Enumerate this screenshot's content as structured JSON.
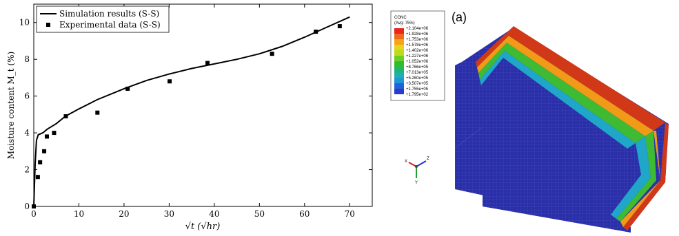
{
  "chart_data": {
    "type": "line+scatter",
    "xlabel": "√t (√hr)",
    "ylabel": "Moisture content M_t (%)",
    "xlim": [
      0,
      75
    ],
    "ylim": [
      0,
      11
    ],
    "xticks": [
      0,
      10,
      20,
      30,
      40,
      50,
      60,
      70
    ],
    "yticks": [
      0,
      2,
      4,
      6,
      8,
      10
    ],
    "legend_position": "top-left",
    "series": [
      {
        "name": "Simulation results (S-S)",
        "style": "line",
        "x": [
          0,
          0.3,
          0.6,
          1.0,
          2,
          3,
          5,
          7,
          10,
          14,
          20,
          25,
          30,
          35,
          40,
          45,
          50,
          55,
          60,
          65,
          70
        ],
        "y": [
          0,
          2.3,
          3.6,
          3.9,
          4.0,
          4.2,
          4.5,
          4.9,
          5.3,
          5.8,
          6.4,
          6.85,
          7.2,
          7.5,
          7.75,
          8.0,
          8.3,
          8.7,
          9.2,
          9.75,
          10.3
        ]
      },
      {
        "name": "Experimental data (S-S)",
        "style": "markers",
        "x": [
          0,
          0.9,
          1.4,
          2.3,
          2.9,
          4.5,
          7.1,
          14.1,
          20.8,
          30.1,
          38.5,
          52.8,
          62.5,
          67.8
        ],
        "y": [
          0,
          1.6,
          2.4,
          3.0,
          3.8,
          4.0,
          4.9,
          5.1,
          6.4,
          6.8,
          7.8,
          8.3,
          9.5,
          9.8
        ]
      }
    ]
  },
  "figure": {
    "panel_label": "(a)",
    "fea_legend": {
      "title": "CONC",
      "subtitle": "(Avg: 75%)",
      "entries": [
        {
          "label": "+2.104e+06",
          "color": "#e8261f"
        },
        {
          "label": "+1.928e+06",
          "color": "#f06a1c"
        },
        {
          "label": "+1.753e+06",
          "color": "#f5a31a"
        },
        {
          "label": "+1.578e+06",
          "color": "#e9d21b"
        },
        {
          "label": "+1.402e+06",
          "color": "#b8dc1e"
        },
        {
          "label": "+1.227e+06",
          "color": "#6fce25"
        },
        {
          "label": "+1.052e+06",
          "color": "#2fbd2f"
        },
        {
          "label": "+8.766e+05",
          "color": "#21b56a"
        },
        {
          "label": "+7.013e+05",
          "color": "#1fb0a8"
        },
        {
          "label": "+5.260e+05",
          "color": "#1f97d6"
        },
        {
          "label": "+3.507e+05",
          "color": "#2063d8"
        },
        {
          "label": "+1.755e+05",
          "color": "#2b3ad0"
        },
        {
          "label": "+1.795e+02",
          "color": "#2a2db8"
        }
      ]
    },
    "triad": {
      "x": "X",
      "y": "Y",
      "z": "Z"
    },
    "colors": {
      "bulk": "#2a2fa8",
      "mesh": "#5a5fd0"
    }
  }
}
